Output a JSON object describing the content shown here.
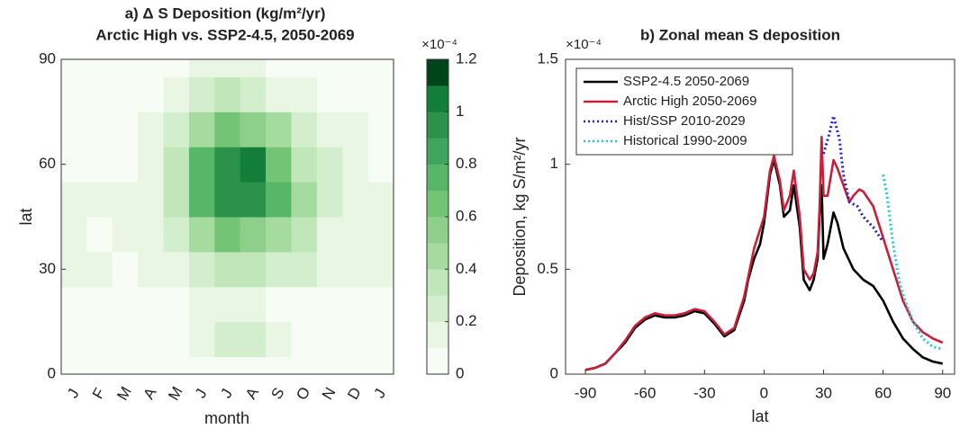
{
  "chart_data": [
    {
      "type": "heatmap",
      "title": "a) Δ S Deposition (kg/m²/yr)",
      "subtitle": "Arctic High vs. SSP2-4.5, 2050-2069",
      "x_label": "month",
      "y_label": "lat",
      "categories": [
        "J",
        "F",
        "M",
        "A",
        "M",
        "J",
        "J",
        "A",
        "S",
        "O",
        "N",
        "D",
        "J"
      ],
      "y": [
        0,
        10,
        20,
        30,
        40,
        50,
        60,
        70,
        80,
        90
      ],
      "ylim": [
        0,
        90
      ],
      "yticks": [
        0,
        30,
        60,
        90
      ],
      "z": [
        [
          0,
          0,
          0,
          0,
          0,
          0,
          0,
          0,
          0,
          0,
          0,
          0,
          0
        ],
        [
          0,
          0,
          0,
          0,
          0.05,
          0.1,
          0.2,
          0.25,
          0.15,
          0.05,
          0,
          0,
          0
        ],
        [
          0.05,
          0.03,
          0.02,
          0.03,
          0.05,
          0.1,
          0.1,
          0.1,
          0.05,
          0.05,
          0.02,
          0.02,
          0.05
        ],
        [
          0.1,
          0.1,
          0.05,
          0.1,
          0.15,
          0.25,
          0.3,
          0.3,
          0.25,
          0.2,
          0.15,
          0.1,
          0.1
        ],
        [
          0.1,
          0.08,
          0.1,
          0.15,
          0.25,
          0.45,
          0.6,
          0.55,
          0.45,
          0.3,
          0.15,
          0.1,
          0.1
        ],
        [
          0.1,
          0.1,
          0.1,
          0.15,
          0.3,
          0.75,
          0.95,
          0.95,
          0.7,
          0.4,
          0.2,
          0.1,
          0.1
        ],
        [
          0.08,
          0.05,
          0.05,
          0.1,
          0.3,
          0.7,
          0.95,
          1.05,
          0.65,
          0.35,
          0.2,
          0.1,
          0.08
        ],
        [
          0.05,
          0.05,
          0.05,
          0.1,
          0.2,
          0.45,
          0.6,
          0.55,
          0.4,
          0.25,
          0.15,
          0.1,
          0.05
        ],
        [
          0.02,
          0.02,
          0.02,
          0.05,
          0.1,
          0.2,
          0.3,
          0.25,
          0.15,
          0.1,
          0.05,
          0.02,
          0.02
        ],
        [
          0,
          0,
          0,
          0.02,
          0.05,
          0.1,
          0.12,
          0.1,
          0.05,
          0.02,
          0.02,
          0,
          0
        ]
      ],
      "clim": [
        0,
        1.2
      ],
      "cticks": [
        0,
        0.2,
        0.4,
        0.6,
        0.8,
        1,
        1.2
      ],
      "colorbar_exponent": "×10⁻⁴",
      "colors": [
        "#f7fcf5",
        "#e8f6e3",
        "#d3eecd",
        "#c0e6b9",
        "#a6dba0",
        "#8ed08b",
        "#74c476",
        "#58b668",
        "#3da55d",
        "#2a924a",
        "#137e3a",
        "#00441b"
      ]
    },
    {
      "type": "line",
      "title": "b) Zonal mean S deposition",
      "x_label": "lat",
      "y_label": "Deposition, kg S/m²/yr",
      "y_exponent": "×10⁻⁴",
      "xlim": [
        -100,
        96
      ],
      "xticks": [
        -90,
        -60,
        -30,
        0,
        30,
        60,
        90
      ],
      "ylim": [
        0,
        1.5
      ],
      "yticks": [
        0,
        0.5,
        1,
        1.5
      ],
      "legend": "upper left",
      "series": [
        {
          "name": "SSP2-4.5 2050-2069",
          "color": "#000000",
          "dash": "solid",
          "x": [
            -90,
            -85,
            -80,
            -75,
            -70,
            -65,
            -60,
            -55,
            -50,
            -45,
            -40,
            -35,
            -30,
            -25,
            -20,
            -15,
            -10,
            -8,
            -5,
            -2,
            0,
            3,
            5,
            8,
            10,
            13,
            15,
            18,
            20,
            23,
            25,
            27,
            28,
            29,
            30,
            32,
            35,
            37,
            40,
            45,
            50,
            55,
            60,
            65,
            70,
            75,
            80,
            85,
            90
          ],
          "values": [
            0.02,
            0.03,
            0.05,
            0.1,
            0.15,
            0.22,
            0.26,
            0.28,
            0.27,
            0.27,
            0.28,
            0.3,
            0.29,
            0.24,
            0.18,
            0.21,
            0.35,
            0.45,
            0.55,
            0.62,
            0.72,
            0.95,
            1.02,
            0.9,
            0.75,
            0.78,
            0.9,
            0.7,
            0.45,
            0.4,
            0.45,
            0.55,
            0.75,
            0.9,
            0.55,
            0.62,
            0.77,
            0.72,
            0.6,
            0.5,
            0.45,
            0.42,
            0.35,
            0.25,
            0.17,
            0.12,
            0.08,
            0.06,
            0.05
          ]
        },
        {
          "name": "Arctic High 2050-2069",
          "color": "#c8203a",
          "dash": "solid",
          "x": [
            -90,
            -85,
            -80,
            -75,
            -70,
            -65,
            -60,
            -55,
            -50,
            -45,
            -40,
            -35,
            -30,
            -25,
            -20,
            -15,
            -10,
            -5,
            0,
            3,
            5,
            8,
            10,
            13,
            15,
            18,
            20,
            23,
            25,
            27,
            28,
            29,
            30,
            32,
            35,
            37,
            40,
            43,
            45,
            48,
            50,
            55,
            60,
            65,
            70,
            75,
            80,
            85,
            90
          ],
          "values": [
            0.02,
            0.03,
            0.05,
            0.1,
            0.16,
            0.23,
            0.27,
            0.29,
            0.28,
            0.28,
            0.29,
            0.31,
            0.3,
            0.25,
            0.19,
            0.22,
            0.37,
            0.6,
            0.75,
            0.97,
            1.04,
            0.92,
            0.78,
            0.85,
            0.97,
            0.75,
            0.5,
            0.45,
            0.48,
            0.58,
            0.8,
            1.13,
            0.85,
            0.85,
            1.02,
            0.98,
            0.9,
            0.82,
            0.85,
            0.88,
            0.87,
            0.8,
            0.65,
            0.5,
            0.35,
            0.25,
            0.2,
            0.17,
            0.15
          ]
        },
        {
          "name": "Hist/SSP 2010-2029",
          "color": "#1f1fc8",
          "dash": "dotted",
          "x": [
            30,
            33,
            35,
            38,
            40,
            43,
            47,
            50,
            55,
            60
          ],
          "values": [
            1.05,
            1.15,
            1.23,
            1.12,
            0.95,
            0.82,
            0.8,
            0.75,
            0.7,
            0.63
          ]
        },
        {
          "name": "Historical 1990-2009",
          "color": "#22c8d0",
          "dash": "dotted",
          "x": [
            60,
            62,
            65,
            68,
            70,
            75,
            80,
            85,
            90
          ],
          "values": [
            0.95,
            0.85,
            0.62,
            0.45,
            0.38,
            0.25,
            0.17,
            0.13,
            0.12
          ]
        }
      ]
    }
  ]
}
